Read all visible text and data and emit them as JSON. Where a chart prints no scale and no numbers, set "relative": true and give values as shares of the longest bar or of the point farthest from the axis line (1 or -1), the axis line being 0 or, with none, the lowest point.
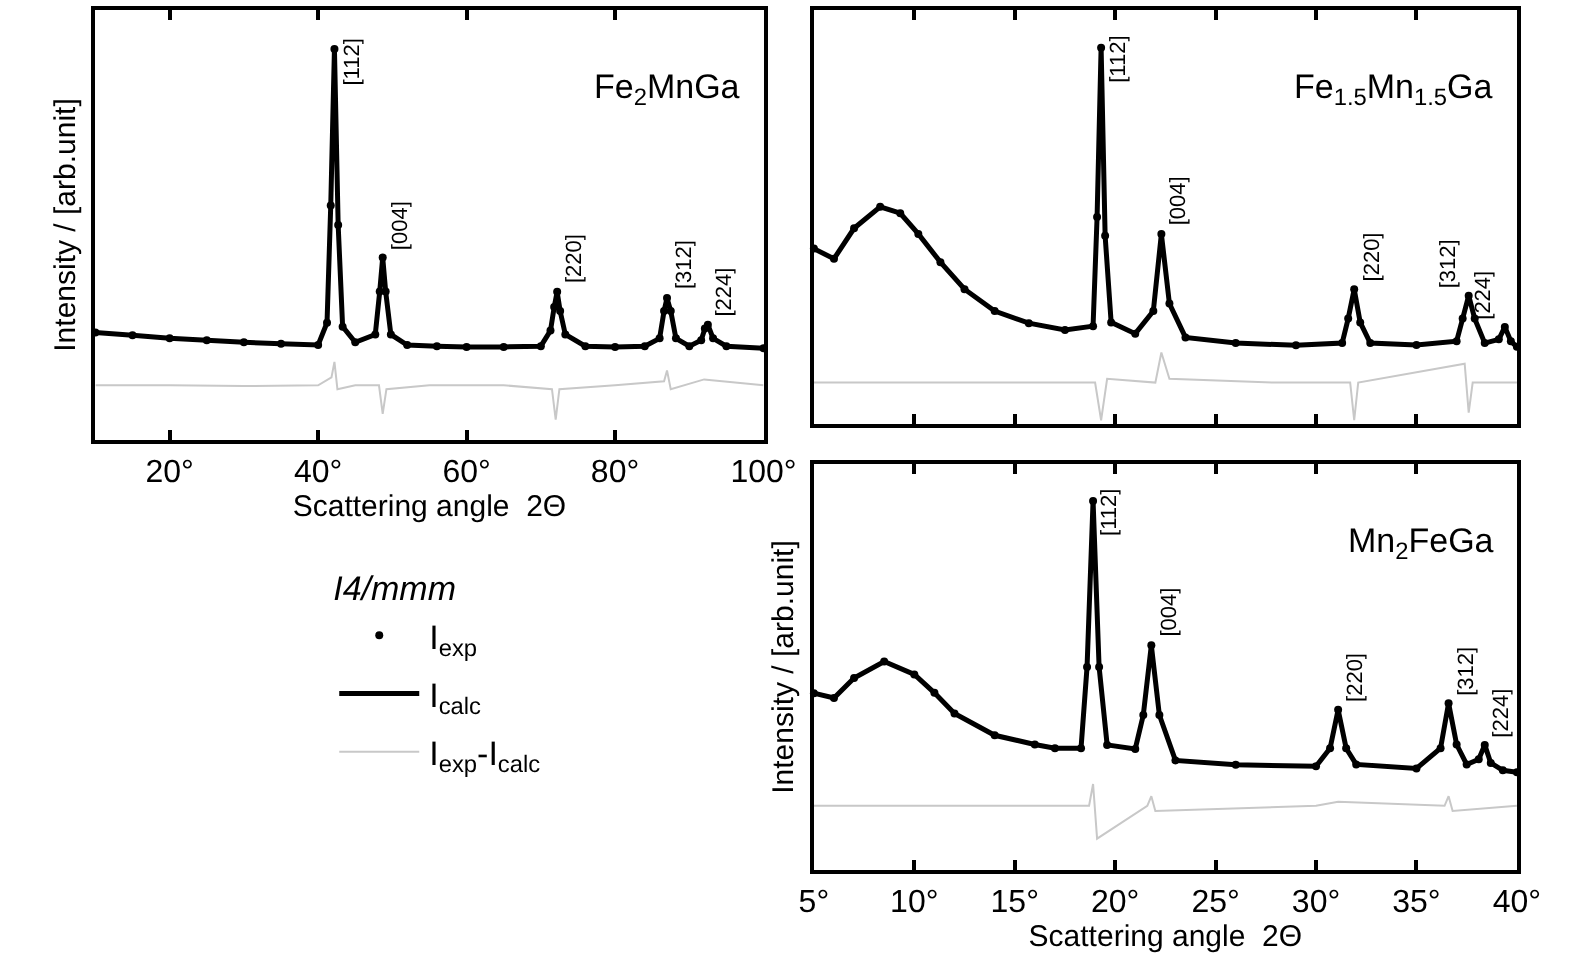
{
  "chart_data": [
    {
      "type": "line",
      "relative": true,
      "legend": "bottom",
      "legend_title": "I4/mmm",
      "tick_labels": "x",
      "xlabel": "Scattering angle  2Θ",
      "ylabel": "Intensity / [arb.unit]",
      "xlim": [
        10,
        100
      ],
      "xticks": [
        {
          "value": 20,
          "label": "20°"
        },
        {
          "value": 40,
          "label": "40°"
        },
        {
          "value": 60,
          "label": "60°"
        },
        {
          "value": 80,
          "label": "80°"
        },
        {
          "value": 100,
          "label": "100°"
        }
      ],
      "x": [
        10,
        15,
        20,
        25,
        30,
        35,
        40,
        41.2,
        41.7,
        42.2,
        42.7,
        43.3,
        45,
        47.7,
        48.3,
        48.7,
        49.1,
        49.8,
        52,
        56,
        60,
        65,
        70,
        71.3,
        71.8,
        72.2,
        72.6,
        73.3,
        76,
        80,
        84,
        86,
        86.6,
        87,
        87.5,
        88.2,
        90,
        91.6,
        92.1,
        92.5,
        93.2,
        95,
        100
      ],
      "series": [
        {
          "name": "I$_{exp}$",
          "type": "scatter",
          "color": "#000000",
          "values": [
            0.275,
            0.268,
            0.26,
            0.255,
            0.25,
            0.246,
            0.243,
            0.3,
            0.6,
            1.0,
            0.55,
            0.29,
            0.25,
            0.27,
            0.38,
            0.467,
            0.38,
            0.27,
            0.243,
            0.24,
            0.238,
            0.238,
            0.24,
            0.28,
            0.34,
            0.379,
            0.33,
            0.27,
            0.24,
            0.238,
            0.24,
            0.26,
            0.33,
            0.363,
            0.33,
            0.26,
            0.24,
            0.255,
            0.285,
            0.295,
            0.26,
            0.24,
            0.235
          ]
        },
        {
          "name": "I$_{calc}$",
          "color": "#000000",
          "values": [
            0.275,
            0.268,
            0.26,
            0.255,
            0.25,
            0.246,
            0.243,
            0.3,
            0.6,
            1.0,
            0.55,
            0.29,
            0.25,
            0.27,
            0.38,
            0.467,
            0.38,
            0.27,
            0.243,
            0.24,
            0.238,
            0.238,
            0.24,
            0.28,
            0.34,
            0.379,
            0.33,
            0.27,
            0.24,
            0.238,
            0.24,
            0.26,
            0.33,
            0.363,
            0.33,
            0.26,
            0.24,
            0.255,
            0.285,
            0.295,
            0.26,
            0.24,
            0.235
          ]
        },
        {
          "name": "I$_{exp}$-I$_{calc}$",
          "color": "#c8c8c8",
          "x": [
            10,
            20,
            30,
            40,
            41.8,
            42.2,
            42.6,
            45,
            48.2,
            48.7,
            49.2,
            55,
            65,
            71.5,
            72,
            72.5,
            80,
            86.6,
            87,
            87.5,
            92,
            100
          ],
          "values": [
            0.14,
            0.14,
            0.138,
            0.14,
            0.16,
            0.2,
            0.13,
            0.14,
            0.14,
            0.067,
            0.13,
            0.14,
            0.14,
            0.13,
            0.052,
            0.13,
            0.14,
            0.15,
            0.178,
            0.13,
            0.155,
            0.14
          ]
        }
      ],
      "annotations": [
        "Fe$_{2}$MnGa",
        {
          "text": "[112]",
          "x": 42.2,
          "y": 1.0
        },
        {
          "text": "[004]",
          "x": 48.7,
          "y": 0.467
        },
        {
          "text": "[220]",
          "x": 72.2,
          "y": 0.379
        },
        {
          "text": "[312]",
          "x": 87,
          "y": 0.363
        },
        {
          "text": "[224]",
          "x": 92.5,
          "y": 0.295
        }
      ]
    },
    {
      "type": "line",
      "relative": true,
      "tick_labels": false,
      "xlim": [
        5,
        40
      ],
      "xticks": [
        {
          "value": 5,
          "label": null
        },
        {
          "value": 10,
          "label": null
        },
        {
          "value": 15,
          "label": null
        },
        {
          "value": 20,
          "label": null
        },
        {
          "value": 25,
          "label": null
        },
        {
          "value": 30,
          "label": null
        },
        {
          "value": 35,
          "label": null
        },
        {
          "value": 40,
          "label": null
        }
      ],
      "x": [
        5,
        6,
        7,
        8.3,
        9.3,
        10.2,
        11.3,
        12.5,
        14,
        15.7,
        17.5,
        18.9,
        19.1,
        19.3,
        19.5,
        19.8,
        21,
        21.9,
        22.3,
        22.7,
        23.5,
        26,
        29,
        31.3,
        31.6,
        31.9,
        32.2,
        32.7,
        35,
        37,
        37.3,
        37.6,
        37.9,
        38.4,
        39.1,
        39.4,
        39.7,
        40
      ],
      "series": [
        {
          "type": "scatter",
          "color": "#000000",
          "values": [
            0.466,
            0.439,
            0.52,
            0.577,
            0.56,
            0.505,
            0.43,
            0.358,
            0.3,
            0.268,
            0.25,
            0.26,
            0.55,
            1.0,
            0.5,
            0.27,
            0.24,
            0.3,
            0.505,
            0.32,
            0.23,
            0.215,
            0.209,
            0.215,
            0.28,
            0.358,
            0.27,
            0.215,
            0.21,
            0.22,
            0.28,
            0.341,
            0.28,
            0.215,
            0.225,
            0.258,
            0.22,
            0.205
          ]
        },
        {
          "color": "#000000",
          "values": [
            0.466,
            0.439,
            0.52,
            0.577,
            0.56,
            0.505,
            0.43,
            0.358,
            0.3,
            0.268,
            0.25,
            0.26,
            0.55,
            1.0,
            0.5,
            0.27,
            0.24,
            0.3,
            0.505,
            0.32,
            0.23,
            0.215,
            0.209,
            0.215,
            0.28,
            0.358,
            0.27,
            0.215,
            0.21,
            0.22,
            0.28,
            0.341,
            0.28,
            0.215,
            0.225,
            0.258,
            0.22,
            0.205
          ]
        },
        {
          "color": "#c8c8c8",
          "x": [
            5,
            10,
            15,
            19,
            19.3,
            19.6,
            22,
            22.3,
            22.7,
            28,
            31.7,
            31.9,
            32.1,
            37.4,
            37.6,
            37.8,
            40
          ],
          "values": [
            0.11,
            0.11,
            0.11,
            0.11,
            0.01,
            0.12,
            0.11,
            0.19,
            0.12,
            0.11,
            0.11,
            0.01,
            0.11,
            0.16,
            0.03,
            0.11,
            0.11
          ]
        }
      ],
      "annotations": [
        "Fe$_{1.5}$Mn$_{1.5}$Ga",
        {
          "text": "[112]",
          "x": 19.3,
          "y": 1.0
        },
        {
          "text": "[004]",
          "x": 22.3,
          "y": 0.505
        },
        {
          "text": "[220]",
          "x": 31.9,
          "y": 0.358
        },
        {
          "text": "[312]",
          "x": 37.6,
          "y": 0.341
        },
        {
          "text": "[224]",
          "x": 39.4,
          "y": 0.258
        }
      ]
    },
    {
      "type": "line",
      "relative": true,
      "tick_labels": "x",
      "xlabel": "Scattering angle  2Θ",
      "ylabel": "Intensity / [arb.unit]",
      "xlim": [
        5,
        40
      ],
      "xticks": [
        {
          "value": 5,
          "label": "5°"
        },
        {
          "value": 10,
          "label": "10°"
        },
        {
          "value": 15,
          "label": "15°"
        },
        {
          "value": 20,
          "label": "20°"
        },
        {
          "value": 25,
          "label": "25°"
        },
        {
          "value": 30,
          "label": "30°"
        },
        {
          "value": 35,
          "label": "35°"
        },
        {
          "value": 40,
          "label": "40°"
        }
      ],
      "x": [
        5,
        6,
        7,
        8.5,
        10,
        11,
        12,
        14,
        16,
        17,
        18.3,
        18.6,
        18.9,
        19.2,
        19.6,
        21,
        21.4,
        21.8,
        22.2,
        23,
        26,
        30,
        30.7,
        31.1,
        31.5,
        32,
        35,
        36.2,
        36.6,
        37,
        37.5,
        38.1,
        38.4,
        38.7,
        39.3,
        40
      ],
      "series": [
        {
          "type": "scatter",
          "color": "#000000",
          "values": [
            0.479,
            0.466,
            0.52,
            0.565,
            0.53,
            0.48,
            0.424,
            0.365,
            0.34,
            0.33,
            0.33,
            0.55,
            1.0,
            0.55,
            0.339,
            0.328,
            0.42,
            0.609,
            0.42,
            0.297,
            0.285,
            0.281,
            0.33,
            0.434,
            0.33,
            0.286,
            0.275,
            0.33,
            0.452,
            0.34,
            0.286,
            0.3,
            0.339,
            0.29,
            0.27,
            0.265
          ]
        },
        {
          "color": "#000000",
          "values": [
            0.479,
            0.466,
            0.52,
            0.565,
            0.53,
            0.48,
            0.424,
            0.365,
            0.34,
            0.33,
            0.33,
            0.55,
            1.0,
            0.55,
            0.339,
            0.328,
            0.42,
            0.609,
            0.42,
            0.297,
            0.285,
            0.281,
            0.33,
            0.434,
            0.33,
            0.286,
            0.275,
            0.33,
            0.452,
            0.34,
            0.286,
            0.3,
            0.339,
            0.29,
            0.27,
            0.265
          ]
        },
        {
          "color": "#c8c8c8",
          "x": [
            5,
            10,
            15,
            18.7,
            18.9,
            19.1,
            21.6,
            21.8,
            22,
            30,
            31.1,
            36.4,
            36.6,
            36.8,
            40
          ],
          "values": [
            0.174,
            0.174,
            0.174,
            0.174,
            0.233,
            0.085,
            0.174,
            0.2,
            0.16,
            0.174,
            0.185,
            0.174,
            0.2,
            0.16,
            0.174
          ]
        }
      ],
      "annotations": [
        "Mn$_{2}$FeGa",
        {
          "text": "[112]",
          "x": 18.9,
          "y": 1.0
        },
        {
          "text": "[004]",
          "x": 21.8,
          "y": 0.609
        },
        {
          "text": "[220]",
          "x": 31.1,
          "y": 0.434
        },
        {
          "text": "[312]",
          "x": 36.6,
          "y": 0.452
        },
        {
          "text": "[224]",
          "x": 38.4,
          "y": 0.339
        }
      ]
    }
  ]
}
